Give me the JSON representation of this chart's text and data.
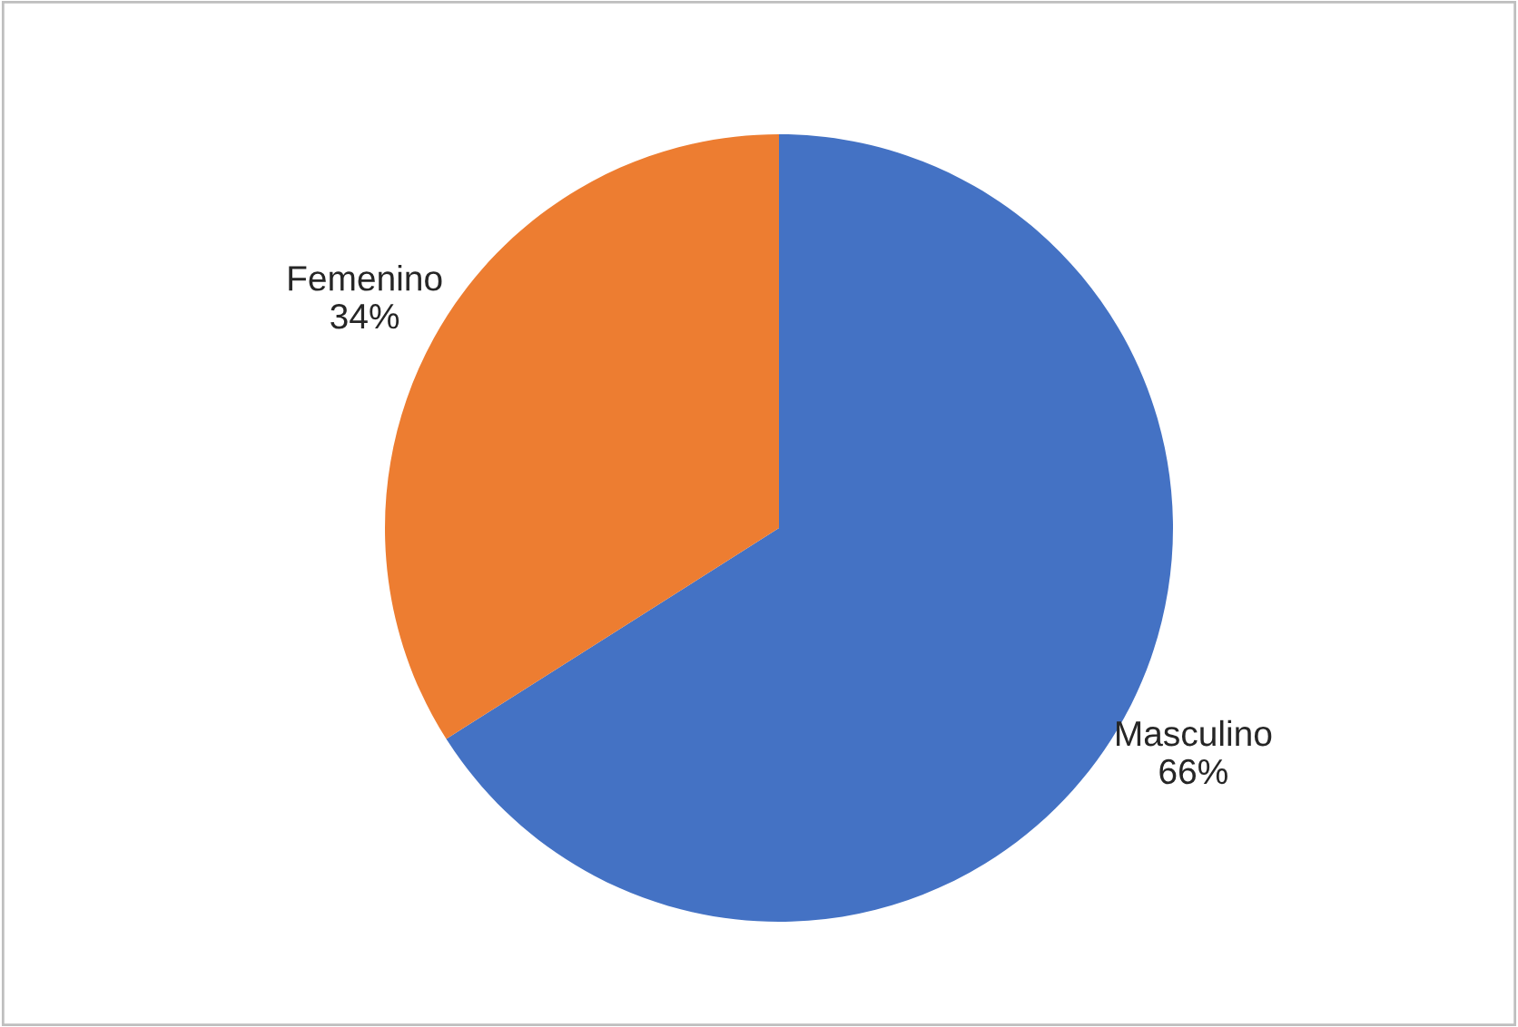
{
  "chart_data": {
    "type": "pie",
    "categories": [
      "Masculino",
      "Femenino"
    ],
    "values": [
      66,
      34
    ],
    "value_labels": [
      "66%",
      "34%"
    ],
    "colors": [
      "#4472c4",
      "#ed7d31"
    ],
    "legend": false
  }
}
